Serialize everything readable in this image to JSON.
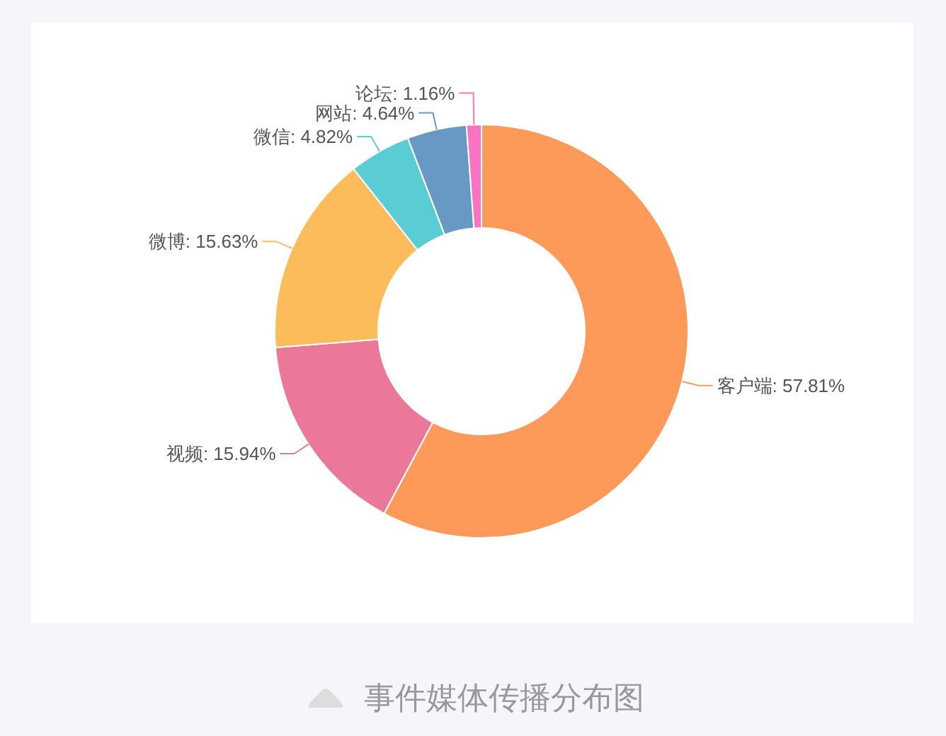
{
  "chart_data": {
    "type": "donut",
    "title": "事件媒体传播分布图",
    "categories": [
      "客户端",
      "视频",
      "微博",
      "微信",
      "网站",
      "论坛"
    ],
    "values": [
      57.81,
      15.94,
      15.63,
      4.82,
      4.64,
      1.16
    ],
    "colors": [
      "#fe9a59",
      "#eb7899",
      "#fcbc5b",
      "#59cdd3",
      "#6899c5",
      "#f674c2"
    ],
    "value_labels": [
      "57.81%",
      "15.94%",
      "15.63%",
      "4.82%",
      "4.64%",
      "1.16%"
    ]
  }
}
